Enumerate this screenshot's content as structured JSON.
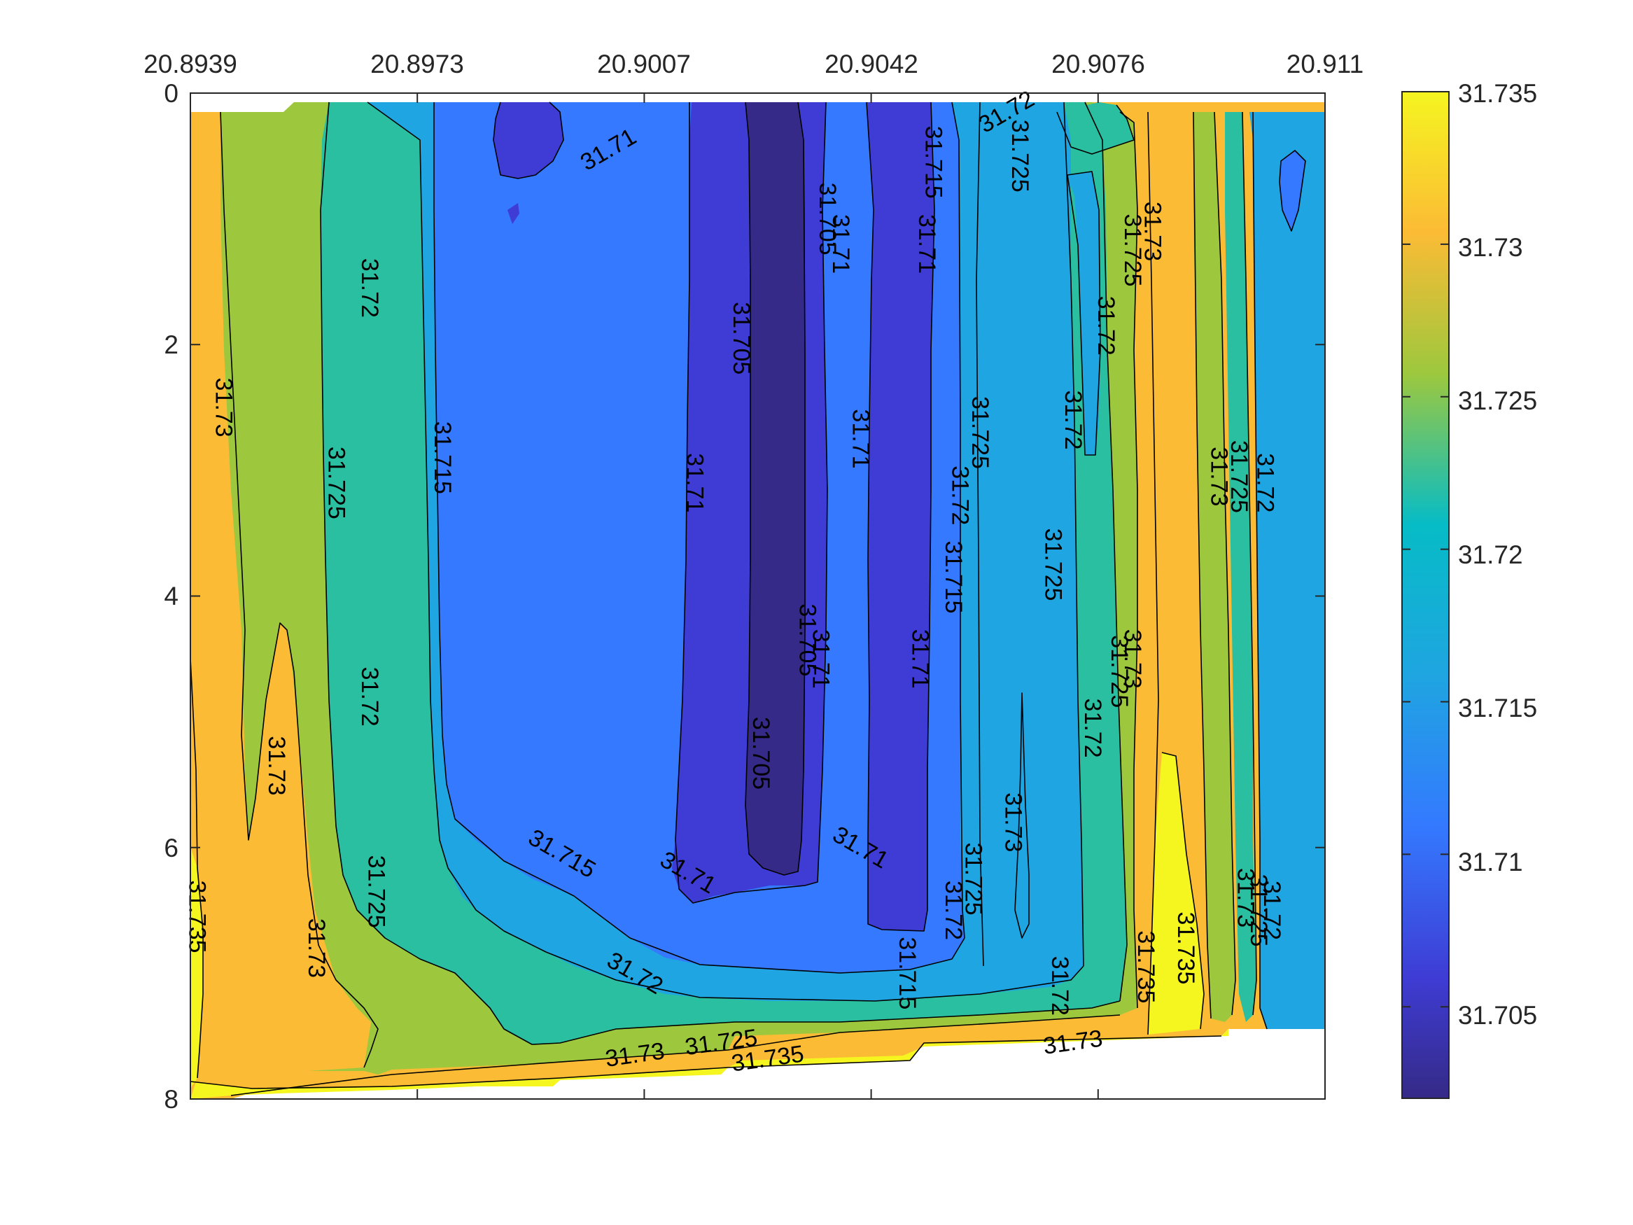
{
  "chart_data": {
    "type": "filled-contour",
    "title": "",
    "xlabel": "",
    "ylabel": "",
    "x_axis_location": "top",
    "y_axis_direction": "reverse",
    "xlim": [
      20.8939,
      20.911
    ],
    "ylim": [
      0,
      8
    ],
    "x_ticks": [
      "20.8939",
      "20.8973",
      "20.9007",
      "20.9042",
      "20.9076",
      "20.911"
    ],
    "y_ticks": [
      "0",
      "2",
      "4",
      "6",
      "8"
    ],
    "grid": false,
    "colormap": "parula",
    "colorbar": {
      "location": "right",
      "limits": [
        31.702,
        31.735
      ],
      "ticks": [
        "31.705",
        "31.71",
        "31.715",
        "31.72",
        "31.725",
        "31.73",
        "31.735"
      ],
      "colors": [
        "#352a87",
        "#3e3cd4",
        "#3479ff",
        "#1fa5e1",
        "#2abfa0",
        "#9dc83e",
        "#fbbb35",
        "#f5f520"
      ]
    },
    "levels": [
      31.705,
      31.71,
      31.715,
      31.72,
      31.725,
      31.73,
      31.735
    ],
    "level_colors": {
      "below_31.705": "#352a87",
      "31.705_31.71": "#3e3cd4",
      "31.71_31.715": "#3479ff",
      "31.715_31.72": "#1fa5e1",
      "31.72_31.725": "#2abfa0",
      "31.725_31.73": "#9dc83e",
      "31.73_31.735": "#fbbb35",
      "above_31.735": "#f5f520"
    },
    "contour_labels": [
      {
        "text": "31.71",
        "x": 20.9002,
        "y": 0.45
      },
      {
        "text": "31.705",
        "x": 20.9035,
        "y": 1.0
      },
      {
        "text": "31.71",
        "x": 20.9037,
        "y": 1.2
      },
      {
        "text": "31.715",
        "x": 20.9051,
        "y": 0.55
      },
      {
        "text": "31.72",
        "x": 20.9062,
        "y": 0.15
      },
      {
        "text": "31.725",
        "x": 20.9064,
        "y": 0.5
      },
      {
        "text": "31.71",
        "x": 20.905,
        "y": 1.2
      },
      {
        "text": "31.725",
        "x": 20.9081,
        "y": 1.25
      },
      {
        "text": "31.73",
        "x": 20.9084,
        "y": 1.1
      },
      {
        "text": "31.72",
        "x": 20.9077,
        "y": 1.85
      },
      {
        "text": "31.705",
        "x": 20.9022,
        "y": 1.95
      },
      {
        "text": "31.72",
        "x": 20.8966,
        "y": 1.55
      },
      {
        "text": "31.73",
        "x": 20.8944,
        "y": 2.5
      },
      {
        "text": "31.725",
        "x": 20.8961,
        "y": 3.1
      },
      {
        "text": "31.715",
        "x": 20.8977,
        "y": 2.9
      },
      {
        "text": "31.71",
        "x": 20.9015,
        "y": 3.1
      },
      {
        "text": "31.71",
        "x": 20.904,
        "y": 2.75
      },
      {
        "text": "31.725",
        "x": 20.9058,
        "y": 2.7
      },
      {
        "text": "31.72",
        "x": 20.9072,
        "y": 2.6
      },
      {
        "text": "31.72",
        "x": 20.9055,
        "y": 3.2
      },
      {
        "text": "31.725",
        "x": 20.9097,
        "y": 3.05
      },
      {
        "text": "31.73",
        "x": 20.9094,
        "y": 3.05
      },
      {
        "text": "31.72",
        "x": 20.9101,
        "y": 3.1
      },
      {
        "text": "31.715",
        "x": 20.9054,
        "y": 3.85
      },
      {
        "text": "31.725",
        "x": 20.9069,
        "y": 3.75
      },
      {
        "text": "31.705",
        "x": 20.9032,
        "y": 4.35
      },
      {
        "text": "31.71",
        "x": 20.9034,
        "y": 4.5
      },
      {
        "text": "31.71",
        "x": 20.9049,
        "y": 4.5
      },
      {
        "text": "31.725",
        "x": 20.9079,
        "y": 4.6
      },
      {
        "text": "31.73",
        "x": 20.9081,
        "y": 4.5
      },
      {
        "text": "31.72",
        "x": 20.8966,
        "y": 4.8
      },
      {
        "text": "31.72",
        "x": 20.9075,
        "y": 5.05
      },
      {
        "text": "31.705",
        "x": 20.9025,
        "y": 5.25
      },
      {
        "text": "31.73",
        "x": 20.8952,
        "y": 5.35
      },
      {
        "text": "31.715",
        "x": 20.8995,
        "y": 6.05
      },
      {
        "text": "31.71",
        "x": 20.9014,
        "y": 6.2
      },
      {
        "text": "31.71",
        "x": 20.904,
        "y": 6.0
      },
      {
        "text": "31.725",
        "x": 20.9057,
        "y": 6.25
      },
      {
        "text": "31.73",
        "x": 20.9063,
        "y": 5.8
      },
      {
        "text": "31.72",
        "x": 20.9054,
        "y": 6.5
      },
      {
        "text": "31.725",
        "x": 20.8967,
        "y": 6.35
      },
      {
        "text": "31.73",
        "x": 20.8958,
        "y": 6.8
      },
      {
        "text": "31.735",
        "x": 20.894,
        "y": 6.55
      },
      {
        "text": "31.715",
        "x": 20.9047,
        "y": 7.0
      },
      {
        "text": "31.72",
        "x": 20.9006,
        "y": 7.0
      },
      {
        "text": "31.735",
        "x": 20.9083,
        "y": 6.95
      },
      {
        "text": "31.735",
        "x": 20.9089,
        "y": 6.8
      },
      {
        "text": "31.73",
        "x": 20.9098,
        "y": 6.4
      },
      {
        "text": "31.725",
        "x": 20.91,
        "y": 6.5
      },
      {
        "text": "31.72",
        "x": 20.9102,
        "y": 6.5
      },
      {
        "text": "31.72",
        "x": 20.907,
        "y": 7.1
      },
      {
        "text": "31.73",
        "x": 20.9072,
        "y": 7.55
      },
      {
        "text": "31.73",
        "x": 20.9006,
        "y": 7.65
      },
      {
        "text": "31.725",
        "x": 20.9019,
        "y": 7.55
      },
      {
        "text": "31.735",
        "x": 20.9026,
        "y": 7.68
      }
    ]
  }
}
